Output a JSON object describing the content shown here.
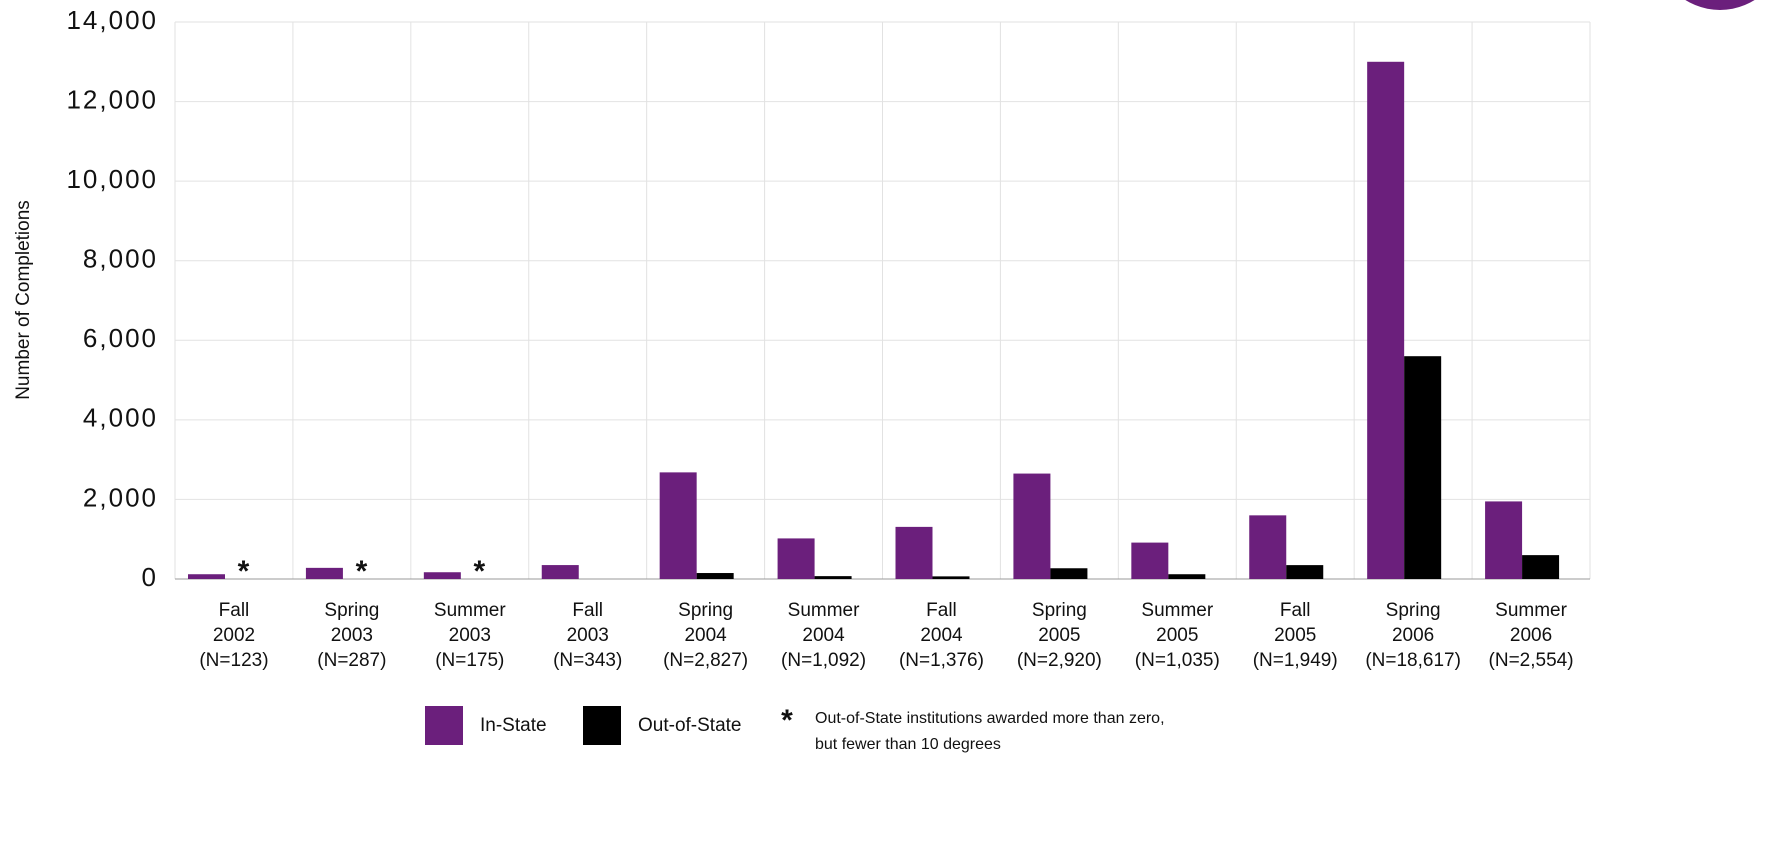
{
  "chart_data": {
    "type": "bar",
    "y_label": "Number of Completions",
    "categories": [
      [
        "Fall",
        "2002",
        "(N=123)"
      ],
      [
        "Spring",
        "2003",
        "(N=287)"
      ],
      [
        "Summer",
        "2003",
        "(N=175)"
      ],
      [
        "Fall",
        "2003",
        "(N=343)"
      ],
      [
        "Spring",
        "2004",
        "(N=2,827)"
      ],
      [
        "Summer",
        "2004",
        "(N=1,092)"
      ],
      [
        "Fall",
        "2004",
        "(N=1,376)"
      ],
      [
        "Spring",
        "2005",
        "(N=2,920)"
      ],
      [
        "Summer",
        "2005",
        "(N=1,035)"
      ],
      [
        "Fall",
        "2005",
        "(N=1,949)"
      ],
      [
        "Spring",
        "2006",
        "(N=18,617)"
      ],
      [
        "Summer",
        "2006",
        "(N=2,554)"
      ]
    ],
    "series": [
      {
        "name": "In-State",
        "color": "#6b1f7c",
        "values": [
          120,
          280,
          170,
          350,
          2680,
          1020,
          1310,
          2650,
          915,
          1600,
          13000,
          1950
        ]
      },
      {
        "name": "Out-of-State",
        "color": "#000000",
        "values": [
          null,
          null,
          null,
          0,
          150,
          72,
          66,
          270,
          120,
          349,
          5600,
          600
        ]
      }
    ],
    "footnote": {
      "symbol": "*",
      "text": [
        "Out-of-State institutions awarded more than zero,",
        "but fewer than 10 degrees"
      ]
    },
    "ylim": [
      0,
      14000
    ],
    "yticks": [
      0,
      {
        "value": 2000,
        "label": "2,000"
      },
      {
        "value": 4000,
        "label": "4,000"
      },
      {
        "value": 6000,
        "label": "6,000"
      },
      {
        "value": 8000,
        "label": "8,000"
      },
      {
        "value": 10000,
        "label": "10,000"
      },
      {
        "value": 12000,
        "label": "12,000"
      },
      {
        "value": 14000,
        "label": "14,000"
      }
    ],
    "grid": true
  }
}
